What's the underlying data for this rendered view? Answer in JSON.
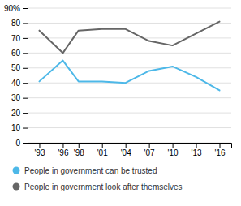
{
  "chart_data": {
    "type": "line",
    "x": [
      1993,
      1996,
      1998,
      2001,
      2004,
      2007,
      2010,
      2013,
      2016
    ],
    "series": [
      {
        "name": "People in government can be trusted",
        "color": "#4db8e8",
        "values": [
          41,
          55,
          41,
          41,
          40,
          48,
          51,
          44,
          35
        ]
      },
      {
        "name": "People in government look after themselves",
        "color": "#666666",
        "values": [
          75,
          60,
          75,
          76,
          76,
          68,
          65,
          73,
          81
        ]
      }
    ],
    "xlim": [
      1991.5,
      2017.5
    ],
    "xticks": [
      {
        "value": 1993,
        "label": "'93"
      },
      {
        "value": 1996,
        "label": "'96"
      },
      {
        "value": 1998,
        "label": "'98"
      },
      {
        "value": 2001,
        "label": "'01"
      },
      {
        "value": 2004,
        "label": "'04"
      },
      {
        "value": 2007,
        "label": "'07"
      },
      {
        "value": 2010,
        "label": "'10"
      },
      {
        "value": 2013,
        "label": "'13"
      },
      {
        "value": 2016,
        "label": "'16"
      }
    ],
    "ylim": [
      0,
      90
    ],
    "yticks": [
      0,
      10,
      20,
      30,
      40,
      50,
      60,
      70,
      80,
      {
        "value": 90,
        "label": "90%"
      }
    ],
    "grid": true,
    "legend": "bottom"
  }
}
